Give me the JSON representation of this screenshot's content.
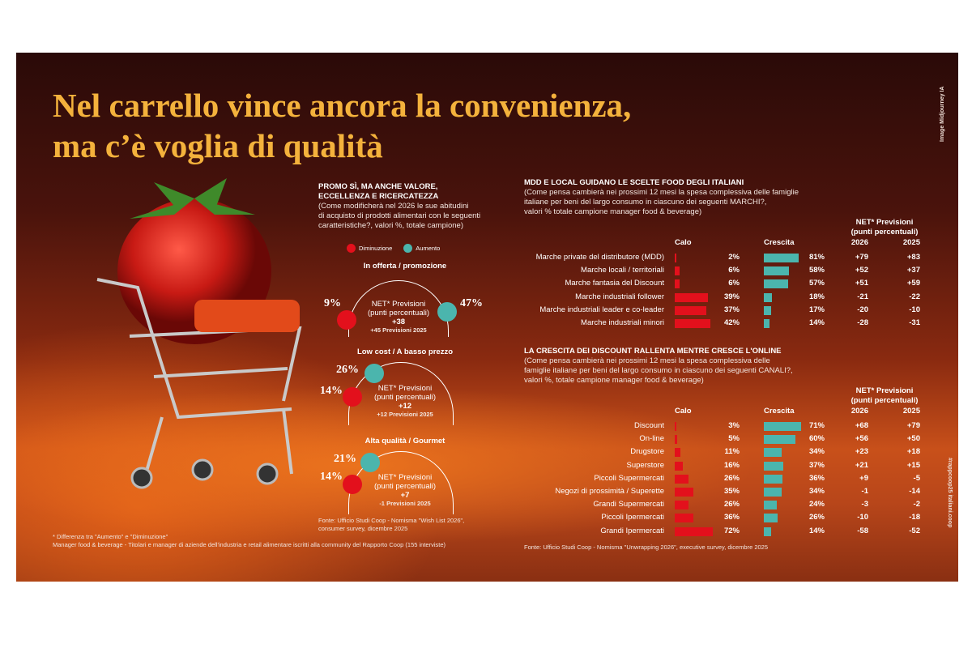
{
  "title": {
    "line1": "Nel carrello vince ancora la convenienza,",
    "line2": "ma c’è voglia di qualità"
  },
  "credit": "Image Midjourney IA",
  "hashtag": "#rappcoop25 italiani.coop",
  "colors": {
    "title": "#f4b23c",
    "diminuzione": "#e3101c",
    "aumento": "#4bb5ad"
  },
  "left_panel": {
    "heading1": "PROMO SÌ, MA ANCHE VALORE,",
    "heading2": "ECCELLENZA E RICERCATEZZA",
    "q1": "(Come modificherà nel 2026 le sue abitudini",
    "q2": "di acquisto di prodotti alimentari con le seguenti",
    "q3": "caratteristiche?, valori %, totale campione)",
    "legend": {
      "decrease": "Diminuzione",
      "increase": "Aumento"
    },
    "net_label1": "NET* Previsioni",
    "net_label2": "(punti percentuali)",
    "items": [
      {
        "title": "In offerta / promozione",
        "decrease": "9%",
        "increase": "47%",
        "net": "+38",
        "prev": "+45 Previsioni 2025"
      },
      {
        "title": "Low cost / A basso prezzo",
        "decrease": "14%",
        "increase": "26%",
        "net": "+12",
        "prev": "+12 Previsioni 2025"
      },
      {
        "title": "Alta qualità / Gourmet",
        "decrease": "14%",
        "increase": "21%",
        "net": "+7",
        "prev": "-1 Previsioni 2025"
      }
    ],
    "source1": "Fonte: Ufficio Studi Coop - Nomisma \"Wish List 2026\",",
    "source2": "consumer survey, dicembre 2025"
  },
  "footnote1": "* Differenza tra \"Aumento\" e \"Diminuzione\"",
  "footnote2": "Manager food & beverage -  Titolari e manager di aziende dell'industria e retail alimentare iscritti alla community del Rapporto Coop (155 interviste)",
  "chart_data": [
    {
      "type": "bar",
      "title": "MDD E LOCAL GUIDANO LE SCELTE FOOD DEGLI ITALIANI",
      "subtitle": [
        "(Come pensa cambierà nei prossimi 12 mesi la spesa complessiva delle famiglie",
        "italiane per beni del largo consumo in ciascuno dei seguenti MARCHI?,",
        "valori % totale campione manager food & beverage)"
      ],
      "col_calo": "Calo",
      "col_crescita": "Crescita",
      "net_header1": "NET* Previsioni",
      "net_header2": "(punti percentuali)",
      "year1": "2026",
      "year2": "2025",
      "categories": [
        "Marche private del distributore (MDD)",
        "Marche locali / territoriali",
        "Marche fantasia del Discount",
        "Marche industriali follower",
        "Marche industriali leader e co-leader",
        "Marche industriali minori"
      ],
      "calo": [
        2,
        6,
        6,
        39,
        37,
        42
      ],
      "crescita": [
        81,
        58,
        57,
        18,
        17,
        14
      ],
      "net2026": [
        "+79",
        "+52",
        "+51",
        "-21",
        "-20",
        "-28"
      ],
      "net2025": [
        "+83",
        "+37",
        "+59",
        "-22",
        "-10",
        "-31"
      ]
    },
    {
      "type": "bar",
      "title": "LA CRESCITA DEI DISCOUNT RALLENTA MENTRE CRESCE L'ONLINE",
      "subtitle": [
        "(Come pensa cambierà nei prossimi 12 mesi la spesa complessiva delle",
        "famiglie italiane per beni del largo consumo in ciascuno dei seguenti CANALI?,",
        "valori %, totale campione manager food & beverage)"
      ],
      "col_calo": "Calo",
      "col_crescita": "Crescita",
      "net_header1": "NET* Previsioni",
      "net_header2": "(punti percentuali)",
      "year1": "2026",
      "year2": "2025",
      "categories": [
        "Discount",
        "On-line",
        "Drugstore",
        "Superstore",
        "Piccoli Supermercati",
        "Negozi di prossimità / Superette",
        "Grandi Supermercati",
        "Piccoli Ipermercati",
        "Grandi Ipermercati"
      ],
      "calo": [
        3,
        5,
        11,
        16,
        26,
        35,
        26,
        36,
        72
      ],
      "crescita": [
        71,
        60,
        34,
        37,
        36,
        34,
        24,
        26,
        14
      ],
      "net2026": [
        "+68",
        "+56",
        "+23",
        "+21",
        "+9",
        "-1",
        "-3",
        "-10",
        "-58"
      ],
      "net2025": [
        "+79",
        "+50",
        "+18",
        "+15",
        "-5",
        "-14",
        "-2",
        "-18",
        "-52"
      ],
      "source": "Fonte: Ufficio Studi Coop - Nomisma \"Unwrapping 2026\", executive survey, dicembre 2025"
    }
  ]
}
